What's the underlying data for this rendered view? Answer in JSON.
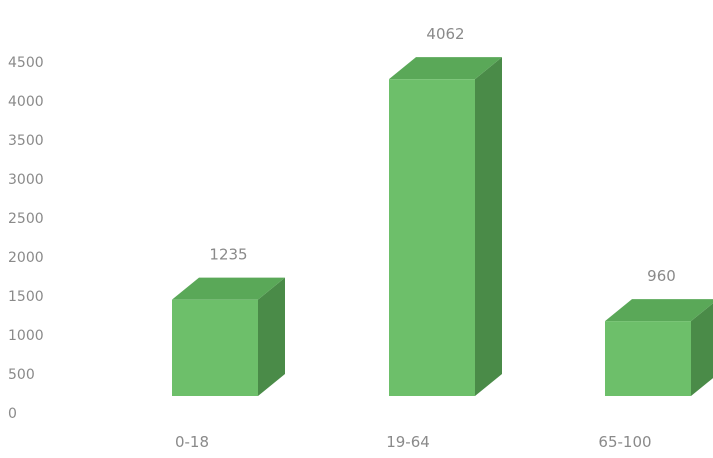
{
  "chart_data": {
    "type": "bar",
    "subtype": "3d-column",
    "categories": [
      "0-18",
      "19-64",
      "65-100"
    ],
    "values": [
      1235,
      4062,
      960
    ],
    "data_labels": [
      "1235",
      "4062",
      "960"
    ],
    "y_ticks": [
      "0",
      "500",
      "1000",
      "1500",
      "2000",
      "2500",
      "3000",
      "3500",
      "4000",
      "4500"
    ],
    "ylim": [
      0,
      4500
    ],
    "grid": false,
    "legend": "none",
    "title": "",
    "xlabel": "",
    "ylabel": ""
  },
  "colors": {
    "bar_front": "#6dbf6a",
    "bar_top": "#5aa858",
    "bar_side": "#4a8b48",
    "text": "#8a8a8a"
  }
}
